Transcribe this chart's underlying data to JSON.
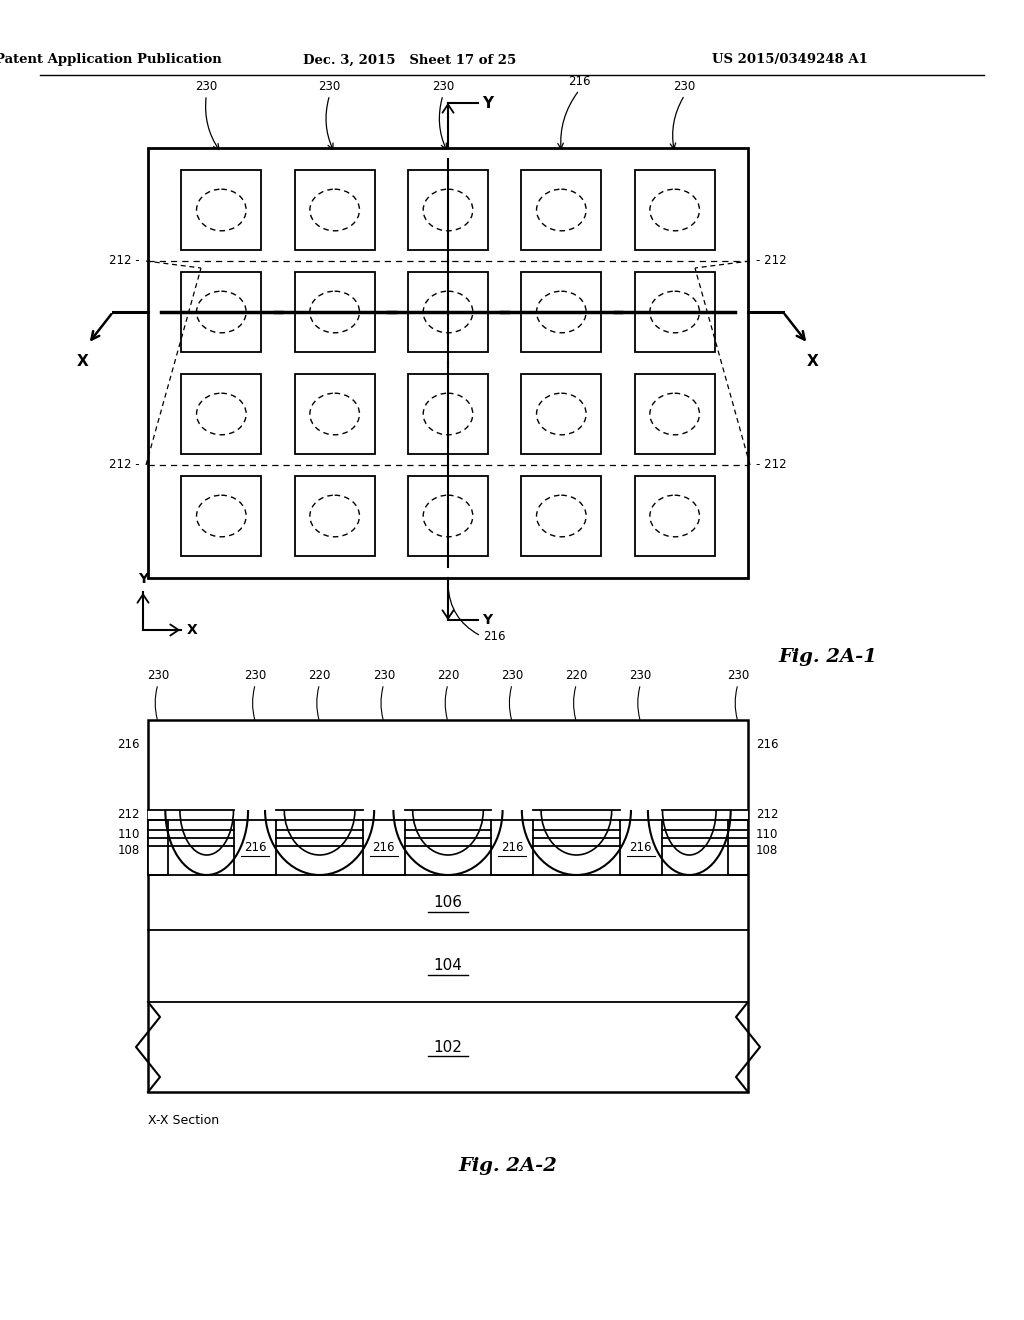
{
  "header_left": "Patent Application Publication",
  "header_mid": "Dec. 3, 2015   Sheet 17 of 25",
  "header_right": "US 2015/0349248 A1",
  "fig1_label": "Fig. 2A-1",
  "fig2_label": "Fig. 2A-2",
  "section_label": "X-X Section",
  "bg_color": "#ffffff",
  "line_color": "#000000"
}
